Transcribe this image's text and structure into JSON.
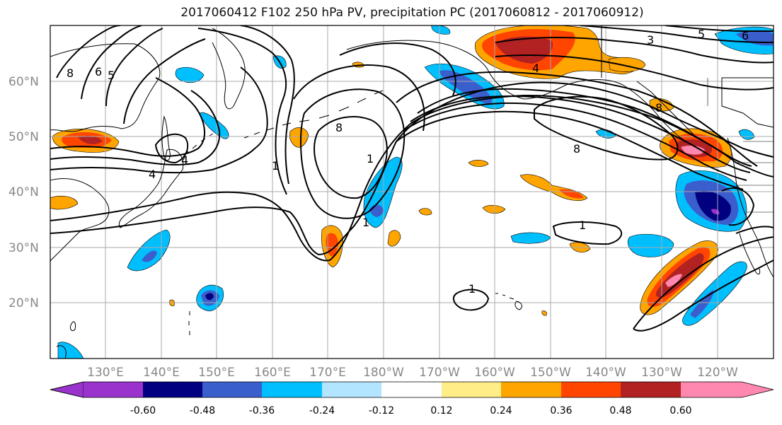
{
  "title": "2017060412 F102 250 hPa PV, precipitation PC (2017060812 - 2017060912)",
  "map": {
    "lon_ticks": [
      "130°E",
      "140°E",
      "150°E",
      "160°E",
      "170°E",
      "180°W",
      "170°W",
      "160°W",
      "150°W",
      "140°W",
      "130°W",
      "120°W"
    ],
    "lat_ticks": [
      "60°N",
      "50°N",
      "40°N",
      "30°N",
      "20°N"
    ],
    "contour_labels": [
      "8",
      "6",
      "5",
      "4",
      "4",
      "8",
      "1",
      "1",
      "1",
      "1",
      "8",
      "3",
      "5",
      "6",
      "8",
      "4",
      "1"
    ]
  },
  "colorbar": {
    "levels": [
      "-0.60",
      "-0.48",
      "-0.36",
      "-0.24",
      "-0.12",
      "0.12",
      "0.24",
      "0.36",
      "0.48",
      "0.60"
    ],
    "colors": [
      "#9933cc",
      "#000080",
      "#3a5fcd",
      "#00bfff",
      "#b2e5ff",
      "#ffffff",
      "#ffee88",
      "#ffa500",
      "#ff4500",
      "#b22222",
      "#ff88b0"
    ]
  }
}
